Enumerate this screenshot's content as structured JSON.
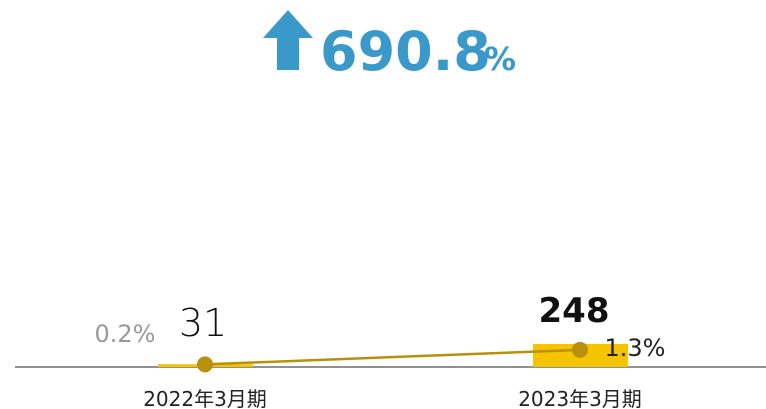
{
  "chart_data": {
    "type": "bar_line",
    "annotation": {
      "value": "690.8",
      "unit": "%"
    },
    "categories": [
      "2022年3月期",
      "2023年3月期"
    ],
    "series": [
      {
        "type": "bar",
        "color": "#f5c400",
        "values": [
          31,
          248
        ]
      },
      {
        "type": "line",
        "axis": "y2",
        "color": "#b8900a",
        "values": [
          0.2,
          1.3
        ],
        "value_labels": [
          "0.2%",
          "1.3%"
        ]
      }
    ],
    "ylim": [
      0,
      3560
    ],
    "y2lim": [
      0,
      25
    ]
  }
}
